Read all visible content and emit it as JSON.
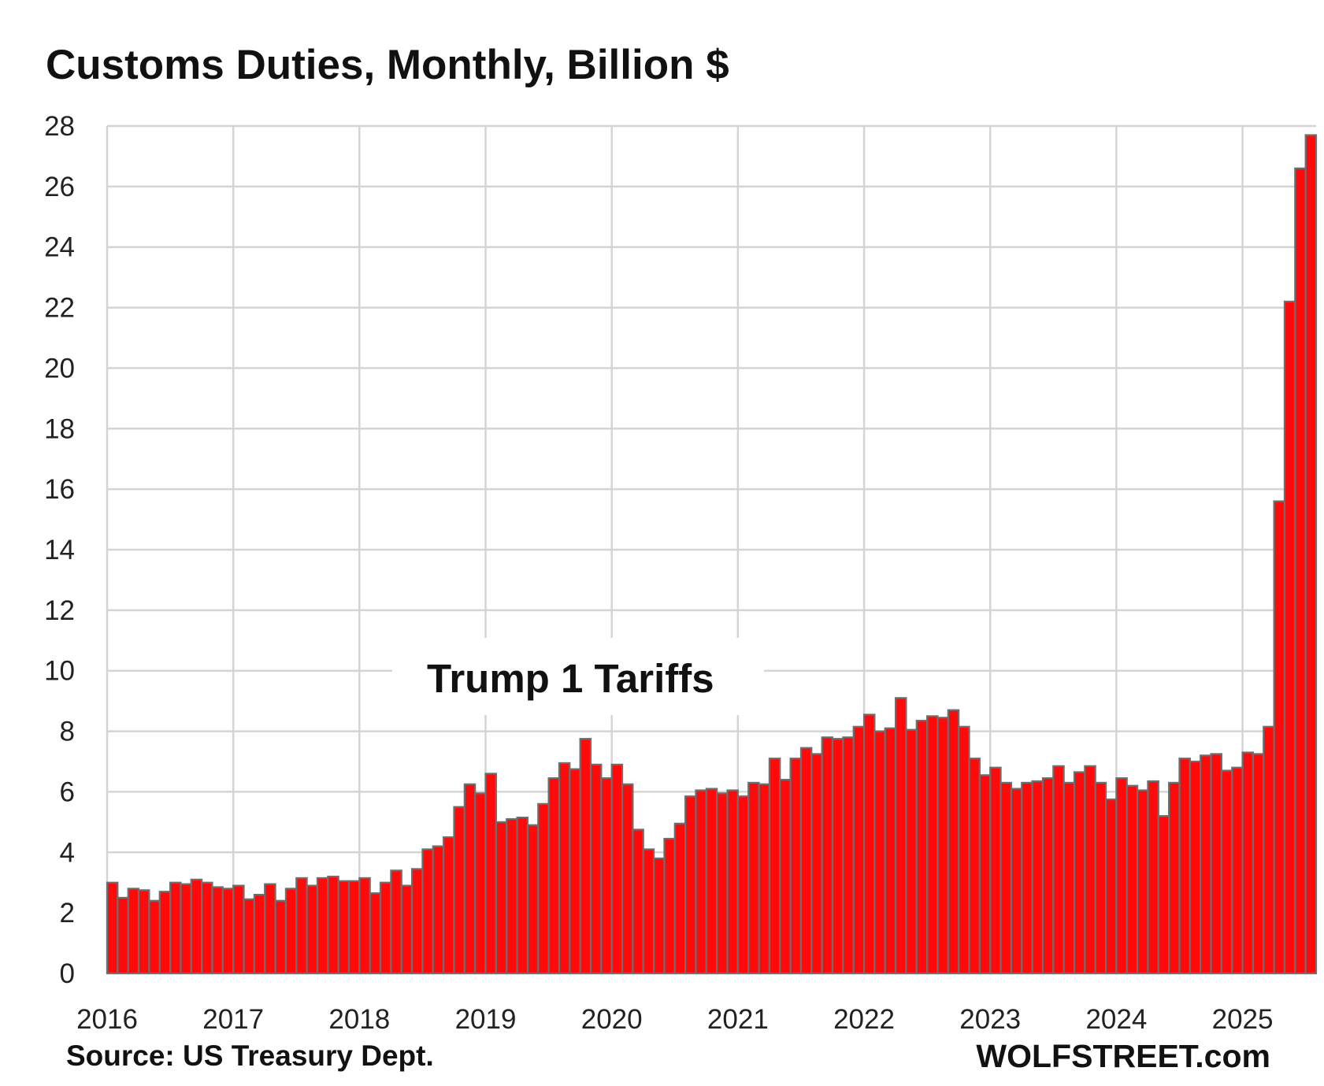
{
  "chart_data": {
    "type": "bar",
    "title": "Customs Duties, Monthly, Billion $",
    "source": "Source: US Treasury Dept.",
    "brand": "WOLFSTREET.com",
    "annotation": "Trump 1 Tariffs",
    "xlabel": "",
    "ylabel": "",
    "ylim": [
      0,
      28
    ],
    "yticks": [
      0,
      2,
      4,
      6,
      8,
      10,
      12,
      14,
      16,
      18,
      20,
      22,
      24,
      26,
      28
    ],
    "xtick_labels": [
      "2016",
      "2017",
      "2018",
      "2019",
      "2020",
      "2021",
      "2022",
      "2023",
      "2024",
      "2025"
    ],
    "grid": true,
    "legend": "none",
    "start_month": "2016-01",
    "bar_color": "#ff0a0a",
    "bar_edge_color": "#6e6e6e",
    "grid_color": "#d4d4d4",
    "values": [
      3.0,
      2.5,
      2.8,
      2.75,
      2.4,
      2.7,
      3.0,
      2.95,
      3.1,
      3.0,
      2.85,
      2.8,
      2.9,
      2.45,
      2.6,
      2.95,
      2.4,
      2.8,
      3.15,
      2.9,
      3.15,
      3.2,
      3.05,
      3.05,
      3.15,
      2.65,
      3.0,
      3.4,
      2.9,
      3.45,
      4.1,
      4.2,
      4.5,
      5.5,
      6.25,
      5.95,
      6.6,
      5.0,
      5.1,
      5.15,
      4.9,
      5.6,
      6.45,
      6.95,
      6.75,
      7.75,
      6.9,
      6.45,
      6.9,
      6.25,
      4.75,
      4.1,
      3.8,
      4.45,
      4.95,
      5.85,
      6.05,
      6.1,
      5.95,
      6.05,
      5.85,
      6.3,
      6.25,
      7.1,
      6.4,
      7.1,
      7.45,
      7.25,
      7.8,
      7.75,
      7.8,
      8.15,
      8.55,
      8.0,
      8.1,
      9.1,
      8.05,
      8.35,
      8.5,
      8.45,
      8.7,
      8.15,
      7.1,
      6.55,
      6.8,
      6.3,
      6.1,
      6.3,
      6.35,
      6.45,
      6.85,
      6.3,
      6.65,
      6.85,
      6.3,
      5.75,
      6.45,
      6.2,
      6.05,
      6.35,
      5.2,
      6.3,
      7.1,
      7.0,
      7.2,
      7.25,
      6.7,
      6.8,
      7.3,
      7.25,
      8.15,
      15.6,
      22.2,
      26.6,
      27.7
    ]
  }
}
